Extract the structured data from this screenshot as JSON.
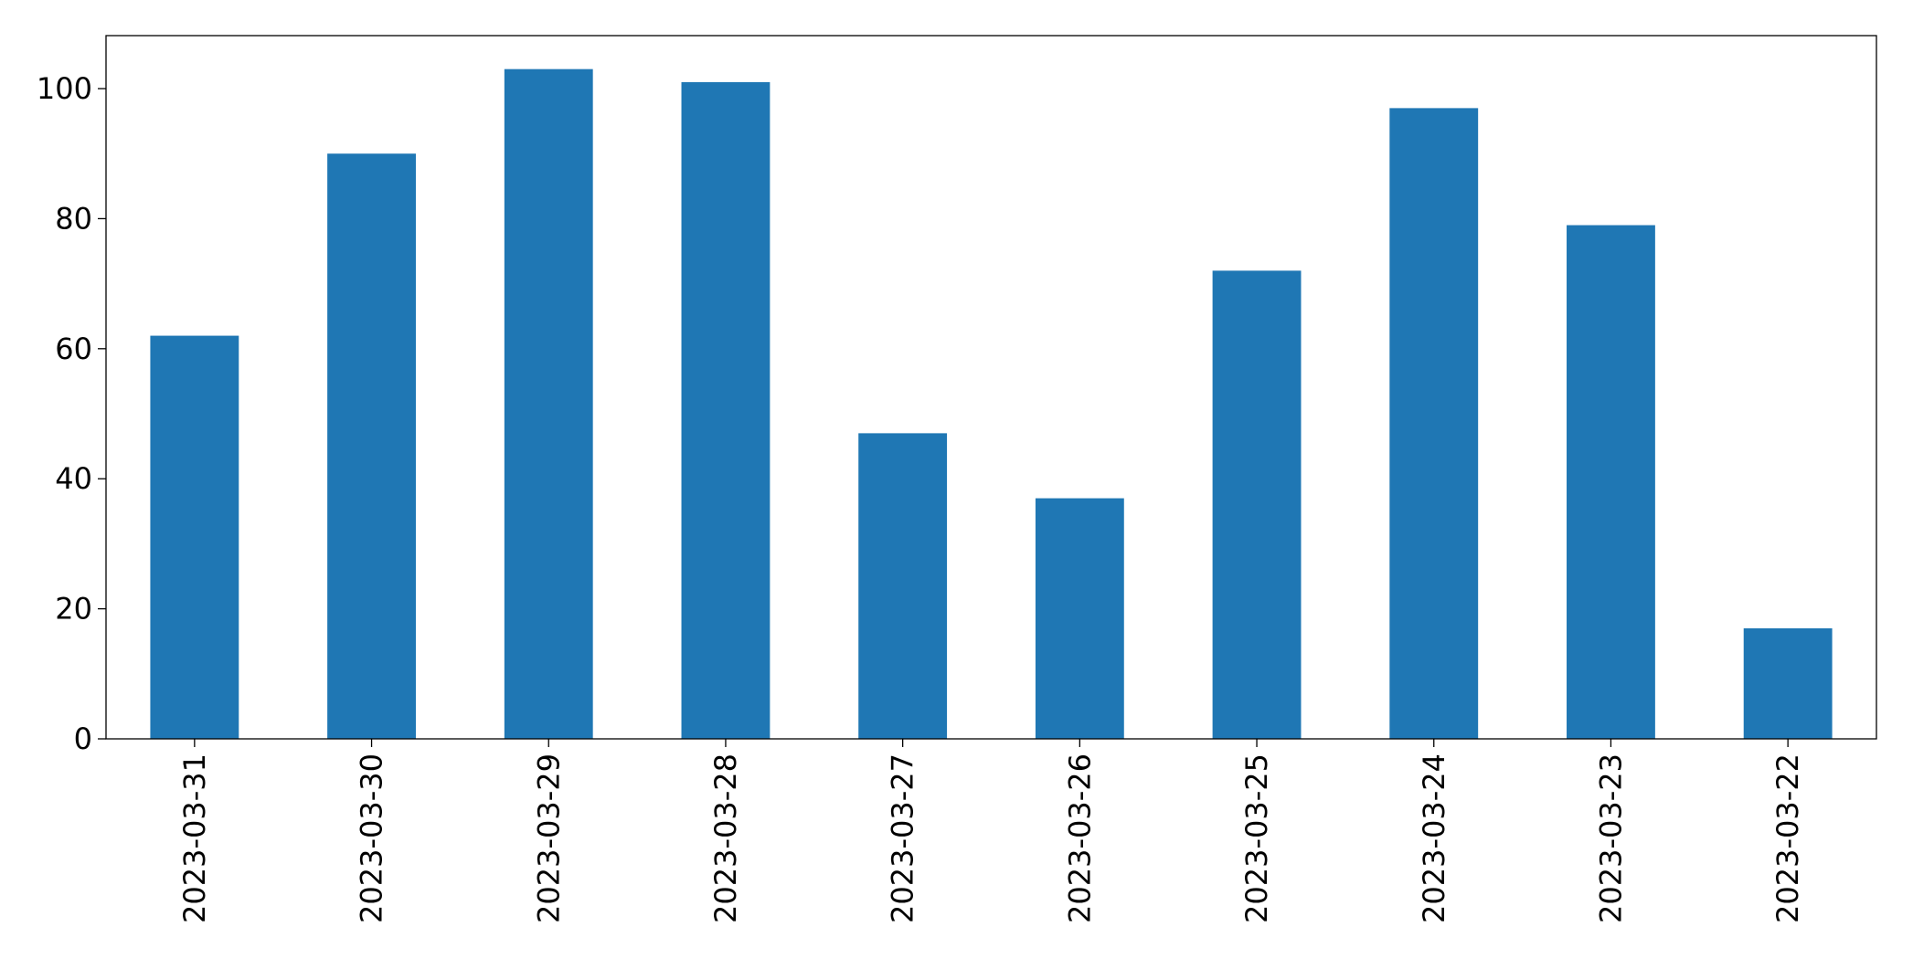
{
  "chart_data": {
    "type": "bar",
    "categories": [
      "2023-03-31",
      "2023-03-30",
      "2023-03-29",
      "2023-03-28",
      "2023-03-27",
      "2023-03-26",
      "2023-03-25",
      "2023-03-24",
      "2023-03-23",
      "2023-03-22"
    ],
    "values": [
      62,
      90,
      103,
      101,
      47,
      37,
      72,
      97,
      79,
      17
    ],
    "color": "#1f77b4",
    "ylim": [
      0,
      108.15
    ],
    "yticks": [
      0,
      20,
      40,
      60,
      80,
      100
    ],
    "grid": false
  }
}
